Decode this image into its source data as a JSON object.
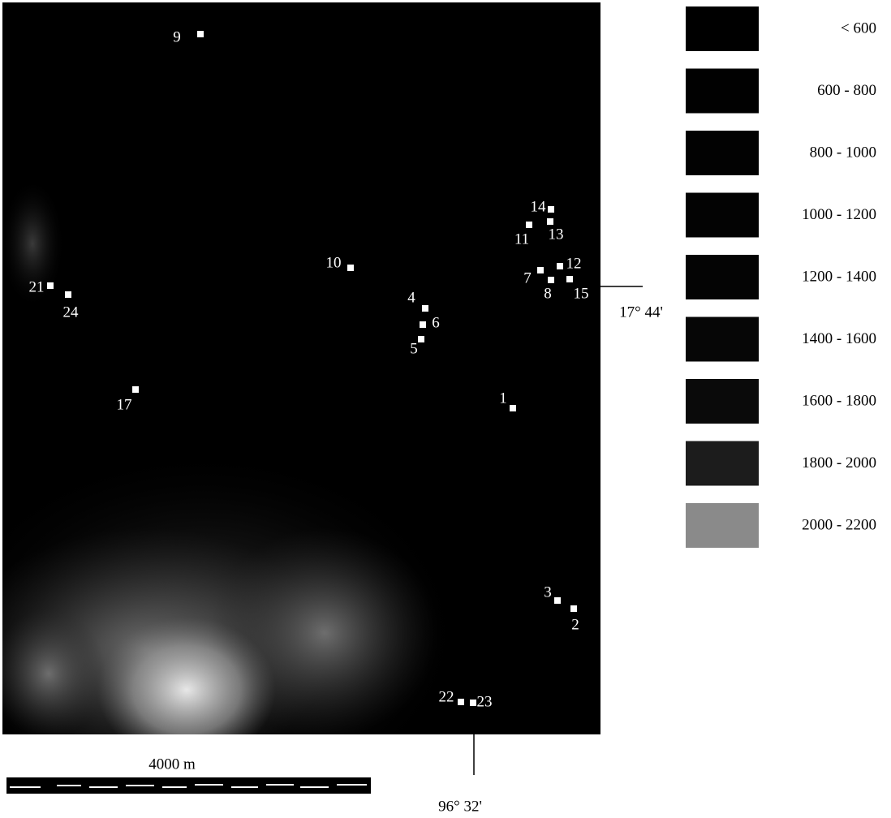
{
  "map": {
    "points": [
      {
        "label": "9"
      },
      {
        "label": "14"
      },
      {
        "label": "11"
      },
      {
        "label": "13"
      },
      {
        "label": "10"
      },
      {
        "label": "7"
      },
      {
        "label": "12"
      },
      {
        "label": "8"
      },
      {
        "label": "15"
      },
      {
        "label": "21"
      },
      {
        "label": "24"
      },
      {
        "label": "4"
      },
      {
        "label": "6"
      },
      {
        "label": "5"
      },
      {
        "label": "17"
      },
      {
        "label": "1"
      },
      {
        "label": "3"
      },
      {
        "label": "2"
      },
      {
        "label": "22"
      },
      {
        "label": "23"
      }
    ],
    "legend": [
      {
        "label": "< 600",
        "color": "#000000"
      },
      {
        "label": "600 -  800",
        "color": "#010101"
      },
      {
        "label": "800 - 1000",
        "color": "#020202"
      },
      {
        "label": "1000 - 1200",
        "color": "#030303"
      },
      {
        "label": "1200 - 1400",
        "color": "#040404"
      },
      {
        "label": "1400 - 1600",
        "color": "#060606"
      },
      {
        "label": "1600 - 1800",
        "color": "#0a0a0a"
      },
      {
        "label": "1800 - 2000",
        "color": "#1c1c1c"
      },
      {
        "label": "2000 - 2200",
        "color": "#8a8a8a"
      }
    ],
    "scale_bar": "4000 m",
    "latitude_label": "17° 44'",
    "longitude_label": "96° 32'"
  }
}
